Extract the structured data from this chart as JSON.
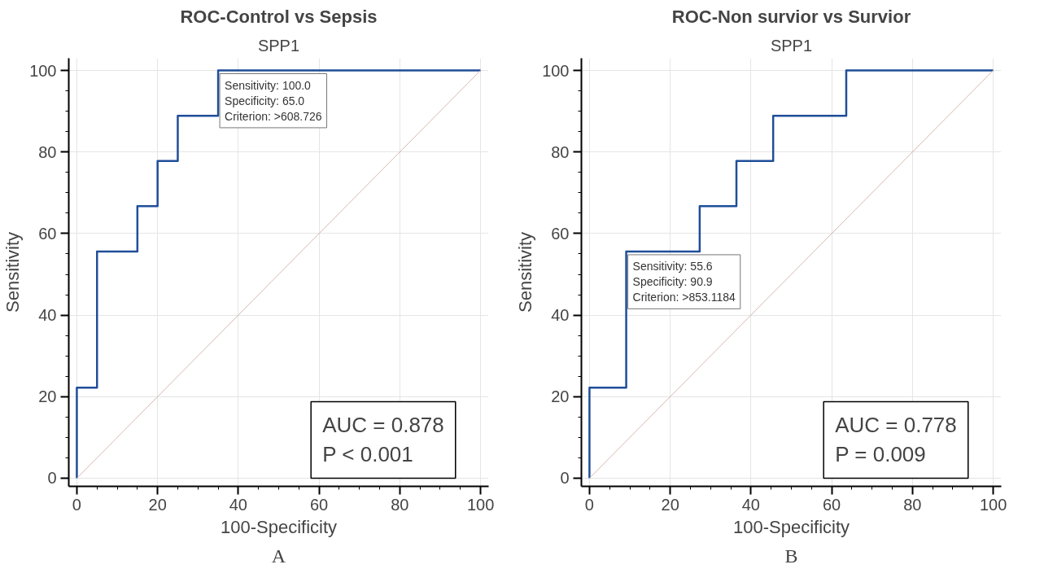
{
  "chart_data": [
    {
      "type": "line",
      "title": "ROC-Control vs Sepsis",
      "subtitle": "SPP1",
      "xlabel": "100-Specificity",
      "ylabel": "Sensitivity",
      "xlim": [
        -2,
        102
      ],
      "ylim": [
        -2,
        103
      ],
      "xticks": [
        0,
        20,
        40,
        60,
        80,
        100
      ],
      "yticks": [
        0,
        20,
        40,
        60,
        80,
        100
      ],
      "grid": true,
      "series": [
        {
          "color": "#1f4e99",
          "x": [
            0,
            0,
            5,
            5,
            15,
            15,
            20,
            20,
            25,
            25,
            35,
            35,
            100
          ],
          "values": [
            0,
            22.2,
            22.2,
            55.6,
            55.6,
            66.7,
            66.7,
            77.8,
            77.8,
            88.9,
            88.9,
            100,
            100
          ]
        },
        {
          "color": "#d8b8b0",
          "x": [
            0,
            100
          ],
          "values": [
            0,
            100
          ]
        }
      ],
      "annotations": [
        {
          "text": "Sensitivity: 100.0\nSpecificity: 65.0\nCriterion: >608.726",
          "x": 35,
          "y": 100
        },
        "AUC = 0.878\nP < 0.001",
        "A"
      ]
    },
    {
      "type": "line",
      "title": "ROC-Non survior vs Survior",
      "subtitle": "SPP1",
      "xlabel": "100-Specificity",
      "ylabel": "Sensitivity",
      "xlim": [
        -2,
        102
      ],
      "ylim": [
        -2,
        103
      ],
      "xticks": [
        0,
        20,
        40,
        60,
        80,
        100
      ],
      "yticks": [
        0,
        20,
        40,
        60,
        80,
        100
      ],
      "grid": true,
      "series": [
        {
          "color": "#1f4e99",
          "x": [
            0,
            0,
            9.1,
            9.1,
            27.3,
            27.3,
            36.4,
            36.4,
            45.5,
            45.5,
            63.6,
            63.6,
            100
          ],
          "values": [
            0,
            22.2,
            22.2,
            55.6,
            55.6,
            66.7,
            66.7,
            77.8,
            77.8,
            88.9,
            88.9,
            100,
            100
          ]
        },
        {
          "color": "#d8b8b0",
          "x": [
            0,
            100
          ],
          "values": [
            0,
            100
          ]
        }
      ],
      "annotations": [
        {
          "text": "Sensitivity: 55.6\nSpecificity: 90.9\nCriterion: >853.1184",
          "x": 9.1,
          "y": 55.6
        },
        "AUC = 0.778\nP = 0.009",
        "B"
      ]
    }
  ]
}
